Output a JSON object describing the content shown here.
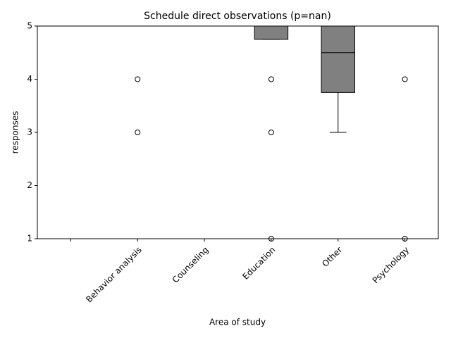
{
  "chart_data": {
    "type": "box",
    "title": "Schedule direct observations (p=nan)",
    "x_label": "Area of study",
    "y_label": "responses",
    "categories": [
      null,
      "Behavior analysis",
      "Counseling",
      "Education",
      "Other",
      "Psychology"
    ],
    "boxes": [
      null,
      {
        "whislo": 5,
        "q1": 5,
        "med": 5,
        "q3": 5,
        "whishi": 5,
        "fliers": [
          4,
          3
        ]
      },
      {
        "whislo": 5,
        "q1": 5,
        "med": 5,
        "q3": 5,
        "whishi": 5,
        "fliers": []
      },
      {
        "whislo": 4.75,
        "q1": 4.75,
        "med": 5,
        "q3": 5,
        "whishi": 5,
        "fliers": [
          4,
          3,
          1
        ]
      },
      {
        "whislo": 3,
        "q1": 3.75,
        "med": 4.5,
        "q3": 5,
        "whishi": 5,
        "fliers": []
      },
      {
        "whislo": 5,
        "q1": 5,
        "med": 5,
        "q3": 5,
        "whishi": 5,
        "fliers": [
          4,
          1
        ]
      }
    ],
    "color": "#808080",
    "ylim": [
      1,
      5
    ],
    "yticks": [
      1,
      2,
      3,
      4,
      5
    ],
    "grid": false
  }
}
